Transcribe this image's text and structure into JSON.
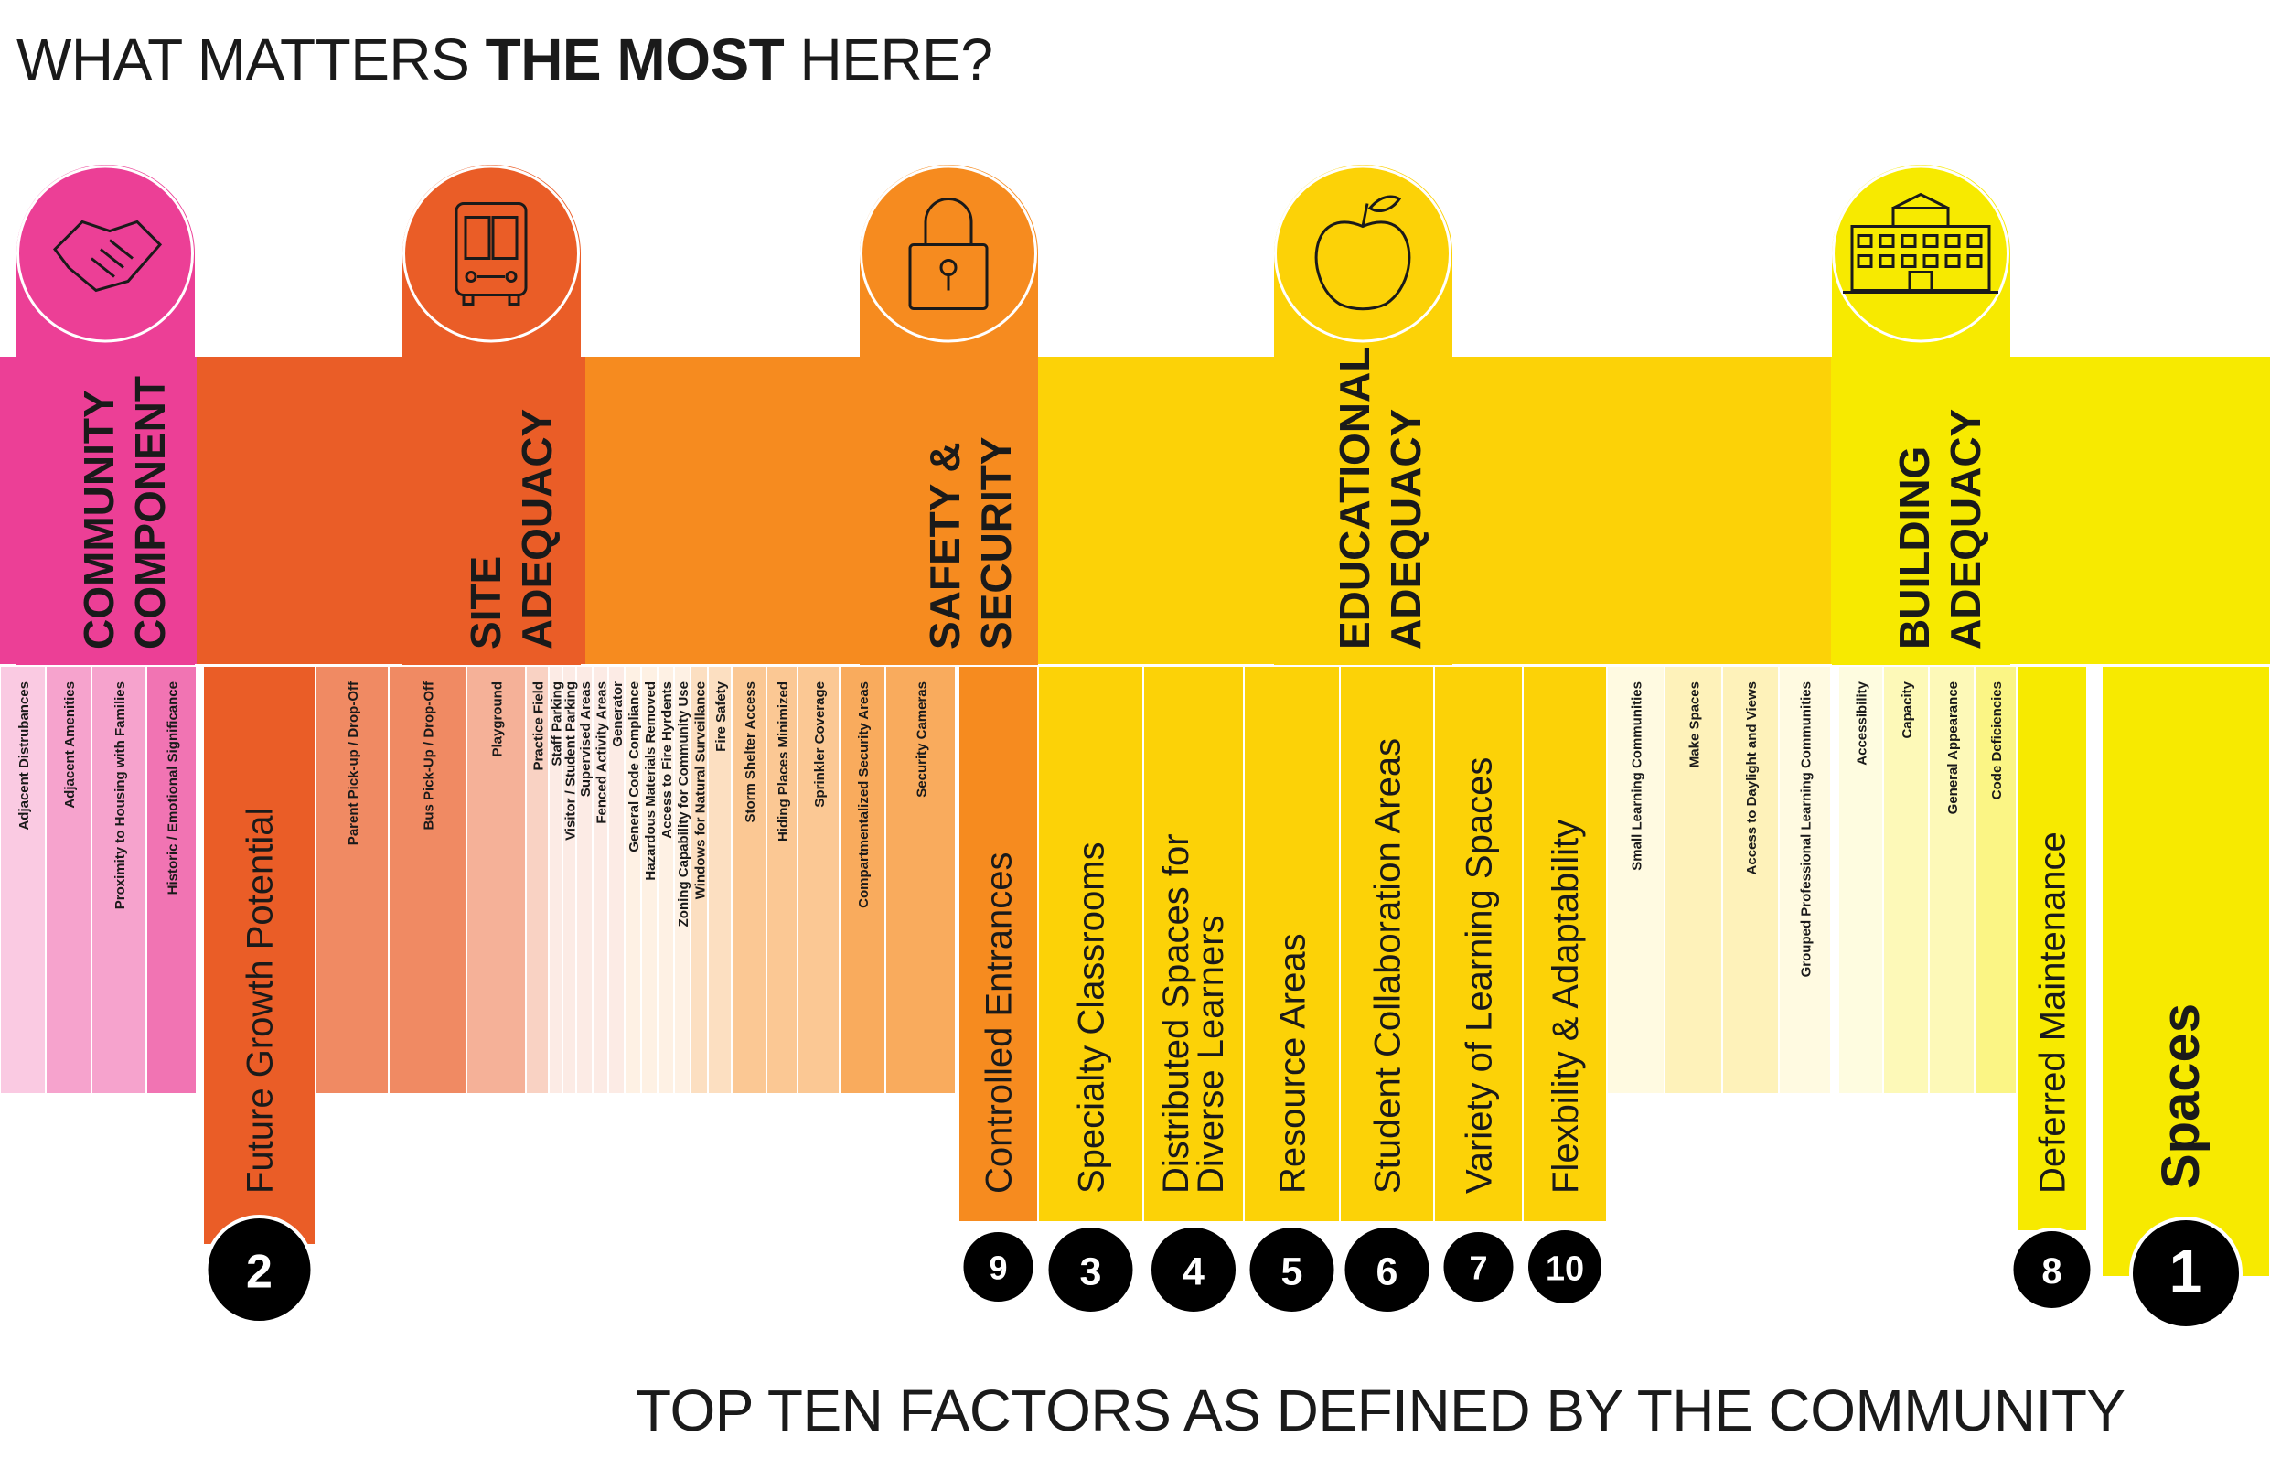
{
  "title": {
    "prefix": "WHAT MATTERS ",
    "bold": "THE MOST",
    "suffix": " HERE?"
  },
  "subtitle": "TOP TEN FACTORS AS DEFINED BY THE COMMUNITY",
  "chart_data": {
    "type": "bar",
    "categories_groups": [
      {
        "name": "COMMUNITY COMPONENT",
        "icon": "handshake-icon",
        "color": "#ec3f96"
      },
      {
        "name": "SITE ADEQUACY",
        "icon": "bus-icon",
        "color": "#ea5d27"
      },
      {
        "name": "SAFETY & SECURITY",
        "icon": "lock-icon",
        "color": "#f68b1f"
      },
      {
        "name": "EDUCATIONAL ADEQUACY",
        "icon": "apple-icon",
        "color": "#fcd207"
      },
      {
        "name": "BUILDING ADEQUACY",
        "icon": "school-building-icon",
        "color": "#f7ea00"
      }
    ],
    "factors": [
      {
        "group": 0,
        "label": "Adjacent Distrubances",
        "rank": null,
        "level": "light"
      },
      {
        "group": 0,
        "label": "Adjacent Amenities",
        "rank": null,
        "level": "medium"
      },
      {
        "group": 0,
        "label": "Proximity to Housing with Families",
        "rank": null,
        "level": "medium"
      },
      {
        "group": 0,
        "label": "Historic / Emotional Significance",
        "rank": null,
        "level": "strong"
      },
      {
        "group": 1,
        "label": "Future Growth Potential",
        "rank": 2,
        "level": "top"
      },
      {
        "group": 1,
        "label": "Parent Pick-up / Drop-Off",
        "rank": null,
        "level": "strong"
      },
      {
        "group": 1,
        "label": "Bus Pick-Up / Drop-Off",
        "rank": null,
        "level": "strong"
      },
      {
        "group": 1,
        "label": "Playground",
        "rank": null,
        "level": "medium"
      },
      {
        "group": 1,
        "label": "Practice Field",
        "rank": null,
        "level": "light"
      },
      {
        "group": 1,
        "label": "Staff Parking",
        "rank": null,
        "level": "faint"
      },
      {
        "group": 1,
        "label": "Visitor / Student Parking",
        "rank": null,
        "level": "faint"
      },
      {
        "group": 1,
        "label": "Supervised Areas",
        "rank": null,
        "level": "faint"
      },
      {
        "group": 1,
        "label": "Fenced Activity Areas",
        "rank": null,
        "level": "faint"
      },
      {
        "group": 1,
        "label": "Generator",
        "rank": null,
        "level": "faint"
      },
      {
        "group": 2,
        "label": "General Code Compliance",
        "rank": null,
        "level": "faint"
      },
      {
        "group": 2,
        "label": "Hazardous Materials Removed",
        "rank": null,
        "level": "faint"
      },
      {
        "group": 2,
        "label": "Access to Fire Hyrdents",
        "rank": null,
        "level": "faint"
      },
      {
        "group": 2,
        "label": "Zoning Capability for Community Use",
        "rank": null,
        "level": "faint"
      },
      {
        "group": 2,
        "label": "Windows for Natural Surveillance",
        "rank": null,
        "level": "light"
      },
      {
        "group": 2,
        "label": "Fire Safety",
        "rank": null,
        "level": "light"
      },
      {
        "group": 2,
        "label": "Storm Shelter Access",
        "rank": null,
        "level": "medium"
      },
      {
        "group": 2,
        "label": "Hiding Places Minimized",
        "rank": null,
        "level": "medium"
      },
      {
        "group": 2,
        "label": "Sprinkler Coverage",
        "rank": null,
        "level": "medium"
      },
      {
        "group": 2,
        "label": "Compartmentalized Security Areas",
        "rank": null,
        "level": "strong"
      },
      {
        "group": 2,
        "label": "Security Cameras",
        "rank": null,
        "level": "strong"
      },
      {
        "group": 2,
        "label": "Controlled Entrances",
        "rank": 9,
        "level": "top"
      },
      {
        "group": 3,
        "label": "Specialty Classrooms",
        "rank": 3,
        "level": "top"
      },
      {
        "group": 3,
        "label": "Distributed Spaces for Diverse Learners",
        "rank": 4,
        "level": "top"
      },
      {
        "group": 3,
        "label": "Resource Areas",
        "rank": 5,
        "level": "top"
      },
      {
        "group": 3,
        "label": "Student Collaboration Areas",
        "rank": 6,
        "level": "top"
      },
      {
        "group": 3,
        "label": "Variety of Learning Spaces",
        "rank": 7,
        "level": "top"
      },
      {
        "group": 3,
        "label": "Flexbility & Adaptability",
        "rank": 10,
        "level": "top"
      },
      {
        "group": 3,
        "label": "Small Learning Communities",
        "rank": null,
        "level": "faint"
      },
      {
        "group": 3,
        "label": "Make Spaces",
        "rank": null,
        "level": "light"
      },
      {
        "group": 3,
        "label": "Access to Daylight and Views",
        "rank": null,
        "level": "light"
      },
      {
        "group": 3,
        "label": "Grouped Professional Learning Communities",
        "rank": null,
        "level": "faint"
      },
      {
        "group": 4,
        "label": "Accessibility",
        "rank": null,
        "level": "faint"
      },
      {
        "group": 4,
        "label": "Capacity",
        "rank": null,
        "level": "light"
      },
      {
        "group": 4,
        "label": "General Appearance",
        "rank": null,
        "level": "light"
      },
      {
        "group": 4,
        "label": "Code Deficiencies",
        "rank": null,
        "level": "medium"
      },
      {
        "group": 4,
        "label": "Deferred Maintenance",
        "rank": 8,
        "level": "top"
      },
      {
        "group": 4,
        "label": "Spaces",
        "rank": 1,
        "level": "top"
      }
    ]
  }
}
